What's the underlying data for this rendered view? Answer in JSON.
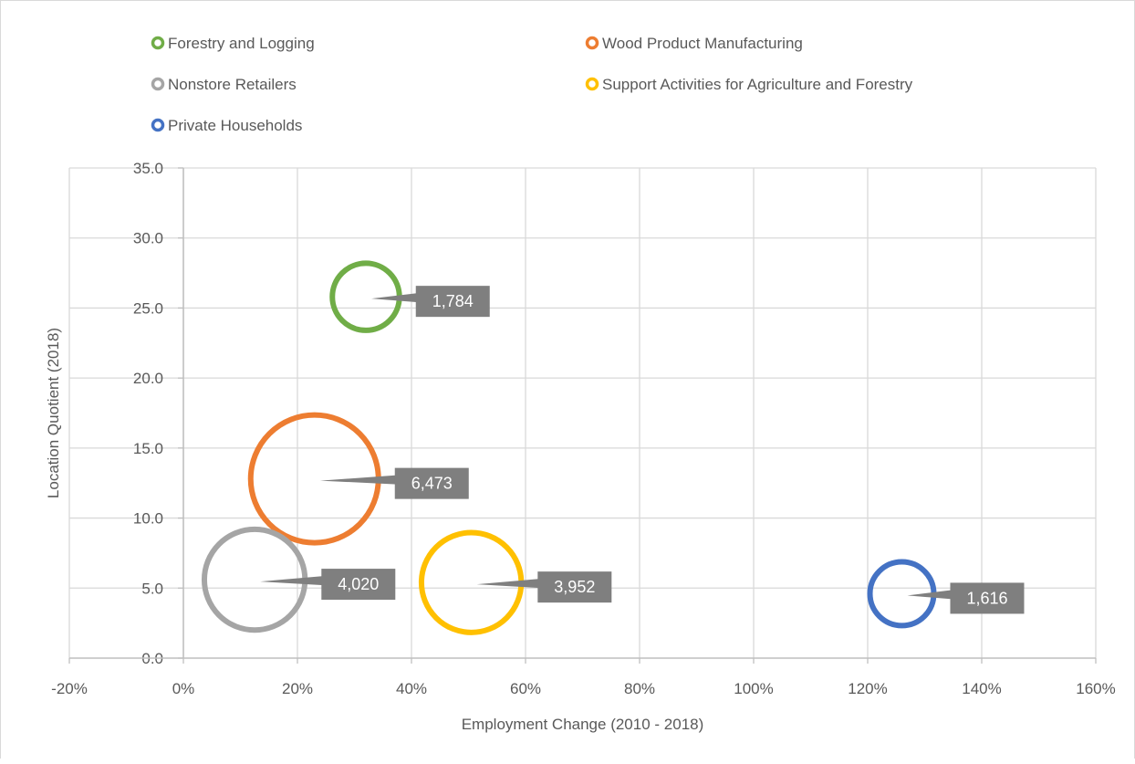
{
  "chart_data": {
    "type": "bubble",
    "xlabel": "Employment Change (2010 - 2018)",
    "ylabel": "Location Quotient (2018)",
    "xlim": [
      -20,
      160
    ],
    "ylim": [
      0,
      35
    ],
    "x_ticks": [
      -20,
      0,
      20,
      40,
      60,
      80,
      100,
      120,
      140,
      160
    ],
    "x_tick_labels": [
      "-20%",
      "0%",
      "20%",
      "40%",
      "60%",
      "80%",
      "100%",
      "120%",
      "140%",
      "160%"
    ],
    "y_ticks": [
      0,
      5,
      10,
      15,
      20,
      25,
      30,
      35
    ],
    "y_tick_labels": [
      "0.0",
      "5.0",
      "10.0",
      "15.0",
      "20.0",
      "25.0",
      "30.0",
      "35.0"
    ],
    "grid": true,
    "legend_position": "top",
    "series": [
      {
        "name": "Forestry and Logging",
        "x": 32,
        "y": 25.8,
        "size": 1784,
        "label": "1,784",
        "color": "#70ad47"
      },
      {
        "name": "Wood Product Manufacturing",
        "x": 23,
        "y": 12.8,
        "size": 6473,
        "label": "6,473",
        "color": "#ed7d31"
      },
      {
        "name": "Nonstore Retailers",
        "x": 12.5,
        "y": 5.6,
        "size": 4020,
        "label": "4,020",
        "color": "#a5a5a5"
      },
      {
        "name": "Support Activities for Agriculture and Forestry",
        "x": 50.5,
        "y": 5.4,
        "size": 3952,
        "label": "3,952",
        "color": "#ffc000"
      },
      {
        "name": "Private Households",
        "x": 126,
        "y": 4.6,
        "size": 1616,
        "label": "1,616",
        "color": "#4472c4"
      }
    ]
  }
}
